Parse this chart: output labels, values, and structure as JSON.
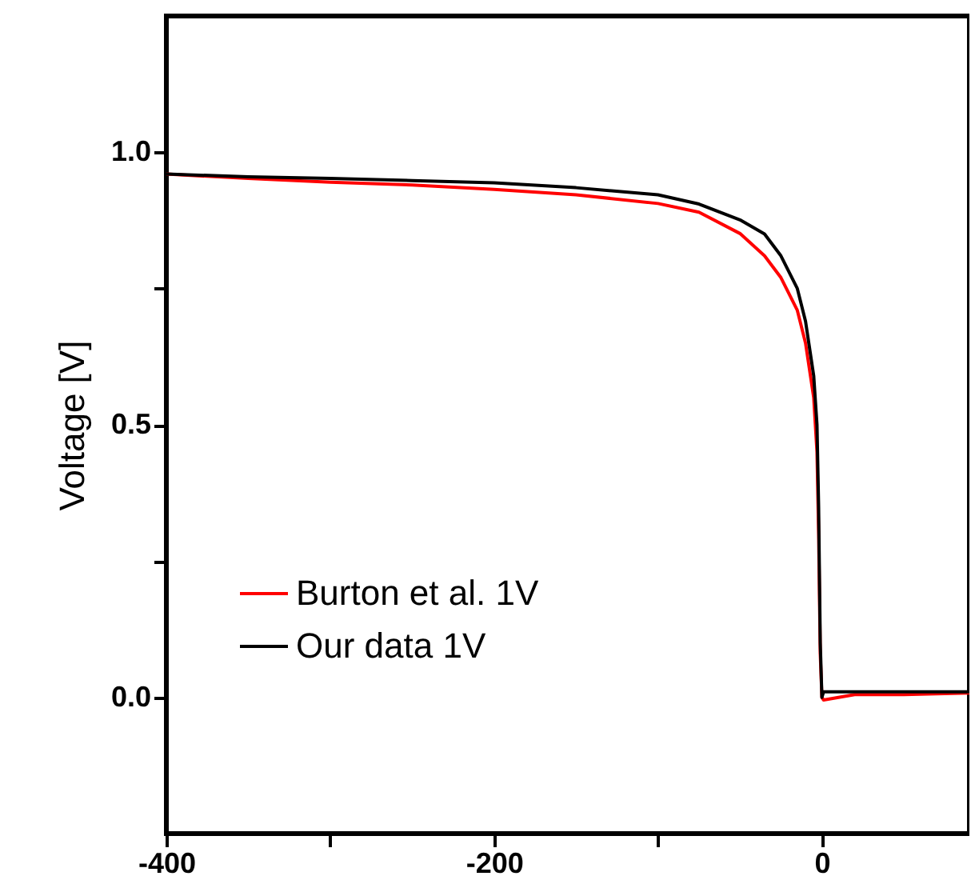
{
  "chart_data": {
    "type": "line",
    "ylabel": "Voltage [V]",
    "xlim": [
      -400,
      90
    ],
    "ylim": [
      -0.25,
      1.25
    ],
    "xticks": [
      -400,
      {
        "value": -300,
        "label": null
      },
      -200,
      {
        "value": -100,
        "label": null
      },
      0
    ],
    "yticks": [
      {
        "value": 0,
        "label": "0.0"
      },
      {
        "value": 0.25,
        "label": null
      },
      {
        "value": 0.5,
        "label": "0.5"
      },
      {
        "value": 0.75,
        "label": null
      },
      {
        "value": 1,
        "label": "1.0"
      }
    ],
    "legend": "bottom left",
    "grid": false,
    "line_style": "solid",
    "marker": "none",
    "series": [
      {
        "name": "Burton et al. 1V",
        "color": "#ff0000",
        "x": [
          -400,
          -350,
          -300,
          -250,
          -200,
          -150,
          -100,
          -75,
          -50,
          -35,
          -25,
          -15,
          -10,
          -5,
          -3,
          -2,
          -1,
          0,
          1,
          20,
          50,
          90
        ],
        "values": [
          0.96,
          0.952,
          0.945,
          0.94,
          0.932,
          0.922,
          0.906,
          0.89,
          0.851,
          0.81,
          0.77,
          0.71,
          0.65,
          0.55,
          0.45,
          0.3,
          0.08,
          0.0,
          -0.005,
          0.005,
          0.005,
          0.008
        ]
      },
      {
        "name": "Our data 1V",
        "color": "#000000",
        "x": [
          -400,
          -350,
          -300,
          -250,
          -200,
          -150,
          -100,
          -75,
          -50,
          -35,
          -25,
          -15,
          -10,
          -5,
          -3,
          -2,
          -1,
          0,
          1,
          20,
          50,
          90
        ],
        "values": [
          0.96,
          0.955,
          0.952,
          0.948,
          0.944,
          0.935,
          0.922,
          0.905,
          0.876,
          0.85,
          0.81,
          0.75,
          0.69,
          0.59,
          0.5,
          0.35,
          0.1,
          0.0,
          0.01,
          0.01,
          0.01,
          0.01
        ]
      }
    ]
  }
}
